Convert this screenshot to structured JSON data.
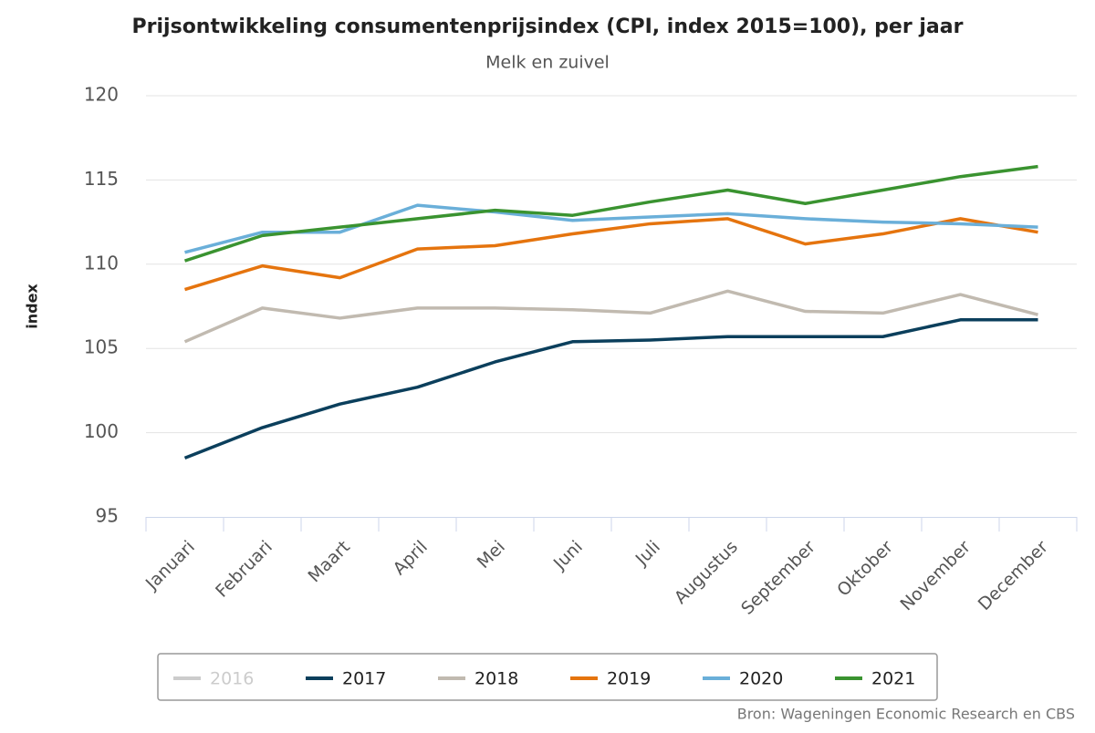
{
  "chart_data": {
    "type": "line",
    "title": "Prijsontwikkeling consumentenprijsindex (CPI, index 2015=100), per jaar",
    "subtitle": "Melk en zuivel",
    "y_label": "index",
    "source": "Bron: Wageningen Economic Research en CBS",
    "categories": [
      "Januari",
      "Februari",
      "Maart",
      "April",
      "Mei",
      "Juni",
      "Juli",
      "Augustus",
      "September",
      "Oktober",
      "November",
      "December"
    ],
    "ylim": [
      95,
      120
    ],
    "yticks": [
      95,
      100,
      105,
      110,
      115,
      120
    ],
    "grid": true,
    "series": [
      {
        "name": "2016",
        "color": "#cccccc",
        "visible": false,
        "values": [
          null,
          null,
          null,
          null,
          null,
          null,
          null,
          null,
          null,
          null,
          null,
          null
        ]
      },
      {
        "name": "2017",
        "color": "#0b3f5c",
        "values": [
          98.5,
          100.3,
          101.7,
          102.7,
          104.2,
          105.4,
          105.5,
          105.7,
          105.7,
          105.7,
          106.7,
          106.7
        ]
      },
      {
        "name": "2018",
        "color": "#c1bab0",
        "values": [
          105.4,
          107.4,
          106.8,
          107.4,
          107.4,
          107.3,
          107.1,
          108.4,
          107.2,
          107.1,
          108.2,
          107.0
        ]
      },
      {
        "name": "2019",
        "color": "#e5740e",
        "values": [
          108.5,
          109.9,
          109.2,
          110.9,
          111.1,
          111.8,
          112.4,
          112.7,
          111.2,
          111.8,
          112.7,
          111.9
        ]
      },
      {
        "name": "2020",
        "color": "#6aafd9",
        "values": [
          110.7,
          111.9,
          111.9,
          113.5,
          113.1,
          112.6,
          112.8,
          113.0,
          112.7,
          112.5,
          112.4,
          112.2
        ]
      },
      {
        "name": "2021",
        "color": "#3a9330",
        "values": [
          110.2,
          111.7,
          112.2,
          112.7,
          113.2,
          112.9,
          113.7,
          114.4,
          113.6,
          114.4,
          115.2,
          115.8
        ]
      }
    ]
  }
}
